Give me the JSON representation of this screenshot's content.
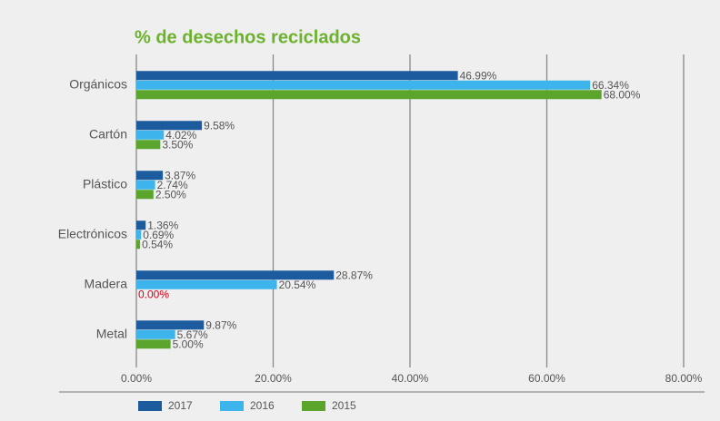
{
  "chart_data": {
    "type": "bar",
    "orientation": "horizontal",
    "title": "% de desechos reciclados",
    "categories": [
      "Orgánicos",
      "Cartón",
      "Plástico",
      "Electrónicos",
      "Madera",
      "Metal"
    ],
    "series": [
      {
        "name": "2017",
        "color": "#1b5b9e",
        "values": [
          46.99,
          9.58,
          3.87,
          1.36,
          28.87,
          9.87
        ],
        "value_labels": [
          "46.99%",
          "9.58%",
          "3.87%",
          "1.36%",
          "28.87%",
          "9.87%"
        ]
      },
      {
        "name": "2016",
        "color": "#3db5ec",
        "values": [
          66.34,
          4.02,
          2.74,
          0.69,
          20.54,
          5.67
        ],
        "value_labels": [
          "66.34%",
          "4.02%",
          "2.74%",
          "0.69%",
          "20.54%",
          "5.67%"
        ]
      },
      {
        "name": "2015",
        "color": "#5ba52d",
        "values": [
          68.0,
          3.5,
          2.5,
          0.54,
          0,
          5.0
        ],
        "value_labels": [
          "68.00%",
          "3.50%",
          "2.50%",
          "0.54%",
          "0.00%",
          "5.00%"
        ]
      }
    ],
    "zero_label_color": "#d9001b",
    "xlim": [
      0,
      80
    ],
    "xticks": [
      {
        "value": 0,
        "label": "0.00%"
      },
      {
        "value": 20,
        "label": "20.00%"
      },
      {
        "value": 40,
        "label": "40.00%"
      },
      {
        "value": 60,
        "label": "60.00%"
      },
      {
        "value": 80,
        "label": "80.00%"
      }
    ],
    "grid": true,
    "legend": "bottom"
  }
}
